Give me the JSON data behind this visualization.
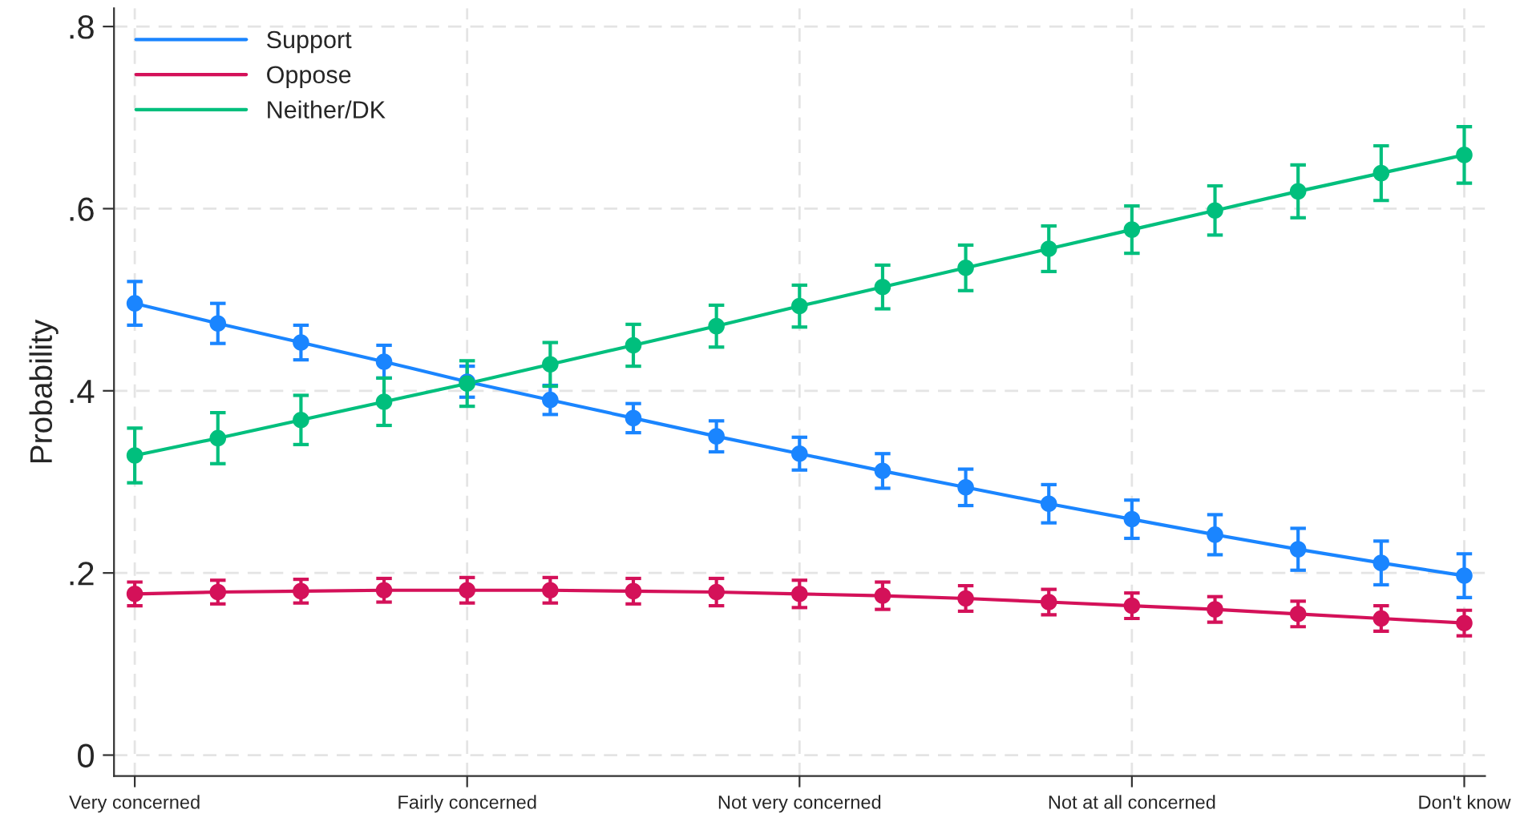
{
  "chart_data": {
    "type": "line",
    "ylabel": "Probability",
    "categories": [
      "Very concerned",
      null,
      null,
      null,
      "Fairly concerned",
      null,
      null,
      null,
      "Not very concerned",
      null,
      null,
      null,
      "Not at all concerned",
      null,
      null,
      null,
      "Don't know"
    ],
    "series": [
      {
        "name": "Support",
        "color": "#1a85ff",
        "values": [
          0.496,
          0.474,
          0.453,
          0.432,
          0.41,
          0.39,
          0.37,
          0.35,
          0.331,
          0.312,
          0.294,
          0.276,
          0.259,
          0.242,
          0.226,
          0.211,
          0.197
        ],
        "errors": [
          0.024,
          0.022,
          0.019,
          0.018,
          0.017,
          0.016,
          0.016,
          0.017,
          0.018,
          0.019,
          0.02,
          0.021,
          0.021,
          0.022,
          0.023,
          0.024,
          0.024
        ]
      },
      {
        "name": "Oppose",
        "color": "#d41159",
        "values": [
          0.177,
          0.179,
          0.18,
          0.181,
          0.181,
          0.181,
          0.18,
          0.179,
          0.177,
          0.175,
          0.172,
          0.168,
          0.164,
          0.16,
          0.155,
          0.15,
          0.145
        ],
        "errors": [
          0.013,
          0.013,
          0.013,
          0.013,
          0.014,
          0.014,
          0.014,
          0.015,
          0.015,
          0.015,
          0.014,
          0.014,
          0.014,
          0.014,
          0.014,
          0.014,
          0.014
        ]
      },
      {
        "name": "Neither/DK",
        "color": "#00bf7d",
        "values": [
          0.329,
          0.348,
          0.368,
          0.388,
          0.408,
          0.429,
          0.45,
          0.471,
          0.493,
          0.514,
          0.535,
          0.556,
          0.577,
          0.598,
          0.619,
          0.639,
          0.659
        ],
        "errors": [
          0.03,
          0.028,
          0.027,
          0.026,
          0.025,
          0.024,
          0.023,
          0.023,
          0.023,
          0.024,
          0.025,
          0.025,
          0.026,
          0.027,
          0.029,
          0.03,
          0.031
        ]
      }
    ],
    "ylim": [
      -0.023,
      0.82
    ],
    "yticks": [
      {
        "value": 0,
        "label": "0"
      },
      {
        "value": 0.2,
        "label": ".2"
      },
      {
        "value": 0.4,
        "label": ".4"
      },
      {
        "value": 0.6,
        "label": ".6"
      },
      {
        "value": 0.8,
        "label": ".8"
      }
    ],
    "grid": true,
    "legend": "top left",
    "marker": "circle",
    "line_style": "solid"
  }
}
